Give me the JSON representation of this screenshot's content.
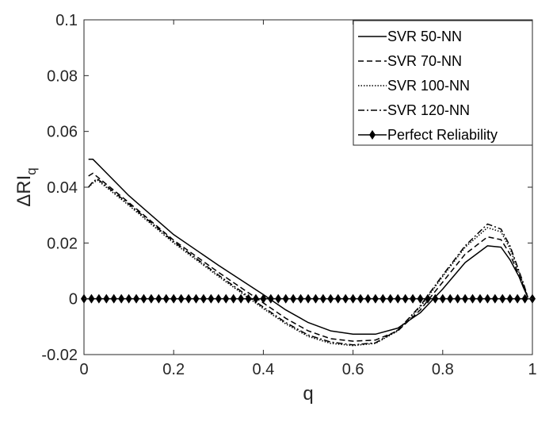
{
  "chart_data": {
    "type": "line",
    "title": "",
    "xlabel": "q",
    "ylabel": "ΔRI",
    "ylabel_sub": "q",
    "xlim": [
      0,
      1
    ],
    "ylim": [
      -0.02,
      0.1
    ],
    "xticks": [
      0,
      0.2,
      0.4,
      0.6,
      0.8,
      1
    ],
    "xtick_labels": [
      "0",
      "0.2",
      "0.4",
      "0.6",
      "0.8",
      "1"
    ],
    "yticks": [
      -0.02,
      0,
      0.02,
      0.04,
      0.06,
      0.08,
      0.1
    ],
    "ytick_labels": [
      "-0.02",
      "0",
      "0.02",
      "0.04",
      "0.06",
      "0.08",
      "0.1"
    ],
    "grid": false,
    "legend_position": "top-right",
    "series": [
      {
        "name": "SVR 50-NN",
        "style": "solid",
        "x": [
          0.01,
          0.02,
          0.1,
          0.2,
          0.3,
          0.4,
          0.45,
          0.5,
          0.55,
          0.6,
          0.65,
          0.7,
          0.75,
          0.8,
          0.85,
          0.9,
          0.93,
          0.95,
          0.97,
          0.98,
          0.99
        ],
        "y": [
          0.05,
          0.05,
          0.037,
          0.023,
          0.012,
          0.0015,
          -0.004,
          -0.0085,
          -0.0115,
          -0.0127,
          -0.0127,
          -0.0105,
          -0.005,
          0.0035,
          0.013,
          0.019,
          0.0185,
          0.014,
          0.008,
          0.004,
          0.0005
        ]
      },
      {
        "name": "SVR 70-NN",
        "style": "dashed",
        "x": [
          0.01,
          0.02,
          0.1,
          0.2,
          0.3,
          0.4,
          0.45,
          0.5,
          0.55,
          0.6,
          0.65,
          0.7,
          0.75,
          0.8,
          0.85,
          0.9,
          0.93,
          0.95,
          0.97,
          0.98,
          0.99
        ],
        "y": [
          0.044,
          0.045,
          0.0345,
          0.021,
          0.0095,
          -0.0015,
          -0.007,
          -0.0115,
          -0.0143,
          -0.0152,
          -0.0148,
          -0.0115,
          -0.004,
          0.006,
          0.016,
          0.0222,
          0.0212,
          0.016,
          0.0085,
          0.0045,
          0.0005
        ]
      },
      {
        "name": "SVR 100-NN",
        "style": "dotted",
        "x": [
          0.01,
          0.02,
          0.03,
          0.1,
          0.2,
          0.3,
          0.4,
          0.45,
          0.5,
          0.55,
          0.6,
          0.65,
          0.7,
          0.75,
          0.8,
          0.85,
          0.9,
          0.93,
          0.95,
          0.97,
          0.98,
          0.99
        ],
        "y": [
          0.04,
          0.0415,
          0.0425,
          0.0335,
          0.02,
          0.008,
          -0.0035,
          -0.009,
          -0.0135,
          -0.016,
          -0.0168,
          -0.016,
          -0.0115,
          -0.003,
          0.008,
          0.0185,
          0.0255,
          0.024,
          0.018,
          0.0095,
          0.005,
          0.0005
        ]
      },
      {
        "name": "SVR 120-NN",
        "style": "dashdot",
        "x": [
          0.01,
          0.02,
          0.03,
          0.1,
          0.2,
          0.3,
          0.4,
          0.45,
          0.5,
          0.55,
          0.6,
          0.65,
          0.7,
          0.75,
          0.8,
          0.85,
          0.9,
          0.93,
          0.95,
          0.97,
          0.98,
          0.99
        ],
        "y": [
          0.04,
          0.042,
          0.043,
          0.034,
          0.0205,
          0.0085,
          -0.003,
          -0.0085,
          -0.013,
          -0.0155,
          -0.0165,
          -0.0158,
          -0.0112,
          -0.0025,
          0.0085,
          0.019,
          0.0268,
          0.025,
          0.019,
          0.01,
          0.0055,
          0.0005
        ]
      },
      {
        "name": "Perfect Reliability",
        "style": "solid-diamond",
        "x": [
          0,
          1
        ],
        "y": [
          0,
          0
        ],
        "marker_count": 60
      }
    ]
  }
}
